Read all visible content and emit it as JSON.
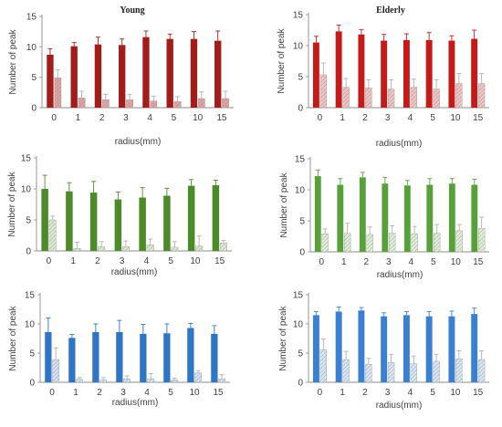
{
  "chart_data": [
    {
      "type": "bar",
      "title": "Young",
      "xlabel": "radius(mm)",
      "ylabel": "Number of peak",
      "categories": [
        "0",
        "1",
        "2",
        "3",
        "4",
        "5",
        "10",
        "15"
      ],
      "ylim": [
        0,
        15
      ],
      "yticks": [
        "0",
        "5",
        "10",
        "15"
      ],
      "series": [
        {
          "values": [
            8.7,
            10.1,
            10.4,
            10.3,
            11.6,
            11.3,
            11.3,
            11.0
          ],
          "errors": [
            1.0,
            0.6,
            1.2,
            1.0,
            1.0,
            0.8,
            1.2,
            1.6
          ],
          "color": "#a31c1c",
          "pattern": "solid"
        },
        {
          "values": [
            4.9,
            1.6,
            1.3,
            1.3,
            1.1,
            1.0,
            1.5,
            1.5
          ],
          "errors": [
            1.3,
            1.1,
            0.9,
            0.9,
            0.8,
            0.8,
            1.1,
            1.2
          ],
          "color": "#e4a3a3",
          "pattern": "hatched"
        }
      ]
    },
    {
      "type": "bar",
      "title": "Elderly",
      "xlabel": "radius(mm)",
      "ylabel": "Number of peak",
      "categories": [
        "0",
        "1",
        "2",
        "3",
        "4",
        "5",
        "10",
        "15"
      ],
      "ylim": [
        0,
        15
      ],
      "yticks": [
        "0",
        "5",
        "10",
        "15"
      ],
      "series": [
        {
          "values": [
            10.5,
            12.3,
            11.8,
            10.8,
            10.9,
            10.9,
            10.8,
            11.1
          ],
          "errors": [
            1.0,
            1.0,
            0.8,
            1.0,
            1.0,
            1.2,
            0.8,
            1.4
          ],
          "color": "#c41a1a",
          "pattern": "solid"
        },
        {
          "values": [
            5.3,
            3.3,
            3.2,
            3.0,
            3.3,
            3.0,
            3.9,
            3.9
          ],
          "errors": [
            1.9,
            1.4,
            1.3,
            1.5,
            1.3,
            1.5,
            1.6,
            1.6
          ],
          "color": "#f2c4c4",
          "pattern": "hatched"
        }
      ]
    },
    {
      "type": "bar",
      "title": "",
      "xlabel": "radius(mm)",
      "ylabel": "Number of peak",
      "categories": [
        "0",
        "1",
        "2",
        "3",
        "4",
        "5",
        "10",
        "15"
      ],
      "ylim": [
        0,
        15
      ],
      "yticks": [
        "0",
        "5",
        "10",
        "15"
      ],
      "series": [
        {
          "values": [
            10.0,
            9.6,
            9.4,
            8.3,
            8.6,
            8.9,
            10.5,
            10.6
          ],
          "errors": [
            2.2,
            1.4,
            1.8,
            1.2,
            1.6,
            1.2,
            1.0,
            0.8
          ],
          "color": "#4c8a2a",
          "pattern": "solid"
        },
        {
          "values": [
            5.0,
            0.4,
            0.7,
            0.7,
            1.0,
            0.6,
            0.8,
            1.3
          ],
          "errors": [
            0.6,
            1.0,
            0.8,
            0.9,
            0.9,
            0.9,
            1.6,
            0.4
          ],
          "color": "#dcecd0",
          "pattern": "hatched"
        }
      ]
    },
    {
      "type": "bar",
      "title": "",
      "xlabel": "radius(mm)",
      "ylabel": "Number of peak",
      "categories": [
        "0",
        "1",
        "2",
        "3",
        "4",
        "5",
        "10",
        "15"
      ],
      "ylim": [
        0,
        15
      ],
      "yticks": [
        "0",
        "5",
        "10",
        "15"
      ],
      "series": [
        {
          "values": [
            12.2,
            10.8,
            12.0,
            11.0,
            10.7,
            10.8,
            11.0,
            10.8
          ],
          "errors": [
            1.0,
            1.0,
            0.8,
            1.0,
            0.8,
            1.0,
            0.8,
            0.9
          ],
          "color": "#58a03a",
          "pattern": "solid"
        },
        {
          "values": [
            2.9,
            3.0,
            2.8,
            3.0,
            2.9,
            3.0,
            3.4,
            3.8
          ],
          "errors": [
            0.8,
            1.6,
            1.2,
            1.2,
            1.2,
            1.4,
            1.0,
            1.8
          ],
          "color": "#e2f0d8",
          "pattern": "hatched"
        }
      ]
    },
    {
      "type": "bar",
      "title": "",
      "xlabel": "radius(mm)",
      "ylabel": "Number of peak",
      "categories": [
        "0",
        "1",
        "2",
        "3",
        "4",
        "5",
        "10",
        "15"
      ],
      "ylim": [
        0,
        15
      ],
      "yticks": [
        "0",
        "5",
        "10",
        "15"
      ],
      "series": [
        {
          "values": [
            8.6,
            7.6,
            8.6,
            8.6,
            8.3,
            8.4,
            9.3,
            8.3
          ],
          "errors": [
            2.4,
            0.6,
            1.4,
            2.0,
            1.6,
            1.6,
            0.8,
            1.4
          ],
          "color": "#2e75c6",
          "pattern": "solid"
        },
        {
          "values": [
            3.9,
            0.5,
            0.4,
            0.6,
            0.6,
            0.4,
            1.6,
            0.6
          ],
          "errors": [
            2.0,
            0.3,
            0.4,
            0.5,
            0.9,
            0.3,
            0.4,
            0.7
          ],
          "color": "#d4e4f4",
          "pattern": "hatched"
        }
      ]
    },
    {
      "type": "bar",
      "title": "",
      "xlabel": "radius(mm)",
      "ylabel": "Number of peak",
      "categories": [
        "0",
        "1",
        "2",
        "3",
        "4",
        "5",
        "10",
        "15"
      ],
      "ylim": [
        0,
        15
      ],
      "yticks": [
        "0",
        "5",
        "10",
        "15"
      ],
      "series": [
        {
          "values": [
            11.5,
            12.1,
            12.3,
            11.3,
            11.5,
            11.3,
            11.3,
            11.7
          ],
          "errors": [
            0.6,
            0.8,
            0.5,
            0.6,
            0.6,
            0.8,
            0.9,
            1.0
          ],
          "color": "#3a7fd0",
          "pattern": "solid"
        },
        {
          "values": [
            5.6,
            3.9,
            3.1,
            3.4,
            3.2,
            3.6,
            4.0,
            3.9
          ],
          "errors": [
            1.8,
            1.4,
            1.0,
            1.4,
            1.3,
            1.2,
            1.4,
            1.5
          ],
          "color": "#d8e8f6",
          "pattern": "hatched"
        }
      ]
    }
  ]
}
